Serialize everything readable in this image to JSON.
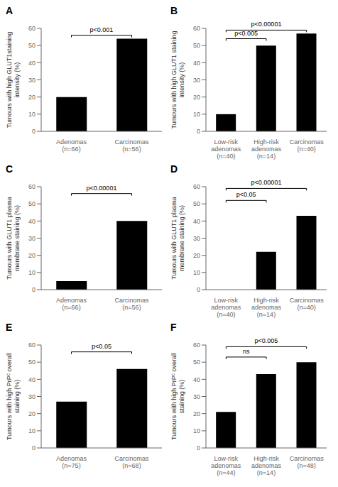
{
  "chart_data": [
    {
      "type": "bar",
      "title": "A",
      "categories": [
        "Adenomas\n(n=66)",
        "Carcinomas\n(n=56)"
      ],
      "values": [
        20,
        54
      ],
      "color": "#000000",
      "ylabel": "Tumours with high GLUT1staining\nintensity (%)",
      "ylim": [
        0,
        60
      ],
      "yticks": [
        0,
        10,
        20,
        30,
        40,
        50,
        60
      ],
      "annotations": [
        {
          "from": "Adenomas\n(n=66)",
          "to": "Carcinomas\n(n=56)",
          "y": 56,
          "label": "p<0.001"
        }
      ]
    },
    {
      "type": "bar",
      "title": "B",
      "categories": [
        "Low-risk\nadenomas\n(n=40)",
        "High-risk\nadenomas\n(n=14)",
        "Carcinomas\n(n=40)"
      ],
      "values": [
        10,
        50,
        57
      ],
      "color": "#000000",
      "ylabel": "Tumours with high GLUT1 staining\nintensity (%)",
      "ylim": [
        0,
        60
      ],
      "yticks": [
        0,
        10,
        20,
        30,
        40,
        50,
        60
      ],
      "annotations": [
        {
          "from": "Low-risk\nadenomas\n(n=40)",
          "to": "Carcinomas\n(n=40)",
          "y": 59,
          "label": "p<0.00001"
        },
        {
          "from": "Low-risk\nadenomas\n(n=40)",
          "to": "High-risk\nadenomas\n(n=14)",
          "y": 54,
          "label": "p<0.005"
        }
      ]
    },
    {
      "type": "bar",
      "title": "C",
      "categories": [
        "Adenomas\n(n=66)",
        "Carcinomas\n(n=56)"
      ],
      "values": [
        5,
        40
      ],
      "color": "#000000",
      "ylabel": "Tumours with GLUT1 plasma\nmembrane staining (%)",
      "ylim": [
        0,
        60
      ],
      "yticks": [
        0,
        10,
        20,
        30,
        40,
        50,
        60
      ],
      "annotations": [
        {
          "from": "Adenomas\n(n=66)",
          "to": "Carcinomas\n(n=56)",
          "y": 56,
          "label": "p<0.00001"
        }
      ]
    },
    {
      "type": "bar",
      "title": "D",
      "categories": [
        "Low-risk\nadenomas\n(n=40)",
        "High-risk\nadenomas\n(n=14)",
        "Carcinomas\n(n=40)"
      ],
      "values": [
        0,
        22,
        43
      ],
      "color": "#000000",
      "ylabel": "Tumours with GLUT1 plasma\nmembrane staining (%)",
      "ylim": [
        0,
        60
      ],
      "yticks": [
        0,
        10,
        20,
        30,
        40,
        50,
        60
      ],
      "annotations": [
        {
          "from": "Low-risk\nadenomas\n(n=40)",
          "to": "Carcinomas\n(n=40)",
          "y": 59,
          "label": "p<0.00001"
        },
        {
          "from": "Low-risk\nadenomas\n(n=40)",
          "to": "High-risk\nadenomas\n(n=14)",
          "y": 52,
          "label": "p<0.05"
        }
      ]
    },
    {
      "type": "bar",
      "title": "E",
      "categories": [
        "Adenomas\n(n=75)",
        "Carcinomas\n(n=68)"
      ],
      "values": [
        27,
        46
      ],
      "color": "#000000",
      "ylabel": "Tumours with high PrPᶜ overall\nstaining (%)",
      "ylim": [
        0,
        60
      ],
      "yticks": [
        0,
        10,
        20,
        30,
        40,
        50,
        60
      ],
      "annotations": [
        {
          "from": "Adenomas\n(n=75)",
          "to": "Carcinomas\n(n=68)",
          "y": 56,
          "label": "p<0.05"
        }
      ]
    },
    {
      "type": "bar",
      "title": "F",
      "categories": [
        "Low-risk\nadenomas\n(n=44)",
        "High-risk\nadenomas\n(n=14)",
        "Carcinomas\n(n=48)"
      ],
      "values": [
        21,
        43,
        50
      ],
      "color": "#000000",
      "ylabel": "Tumours with high PrPᶜ overall\nstaining (%)",
      "ylim": [
        0,
        60
      ],
      "yticks": [
        0,
        10,
        20,
        30,
        40,
        50,
        60
      ],
      "annotations": [
        {
          "from": "Low-risk\nadenomas\n(n=44)",
          "to": "Carcinomas\n(n=48)",
          "y": 59,
          "label": "p<0.005"
        },
        {
          "from": "Low-risk\nadenomas\n(n=44)",
          "to": "High-risk\nadenomas\n(n=14)",
          "y": 53,
          "label": "ns"
        }
      ]
    }
  ]
}
